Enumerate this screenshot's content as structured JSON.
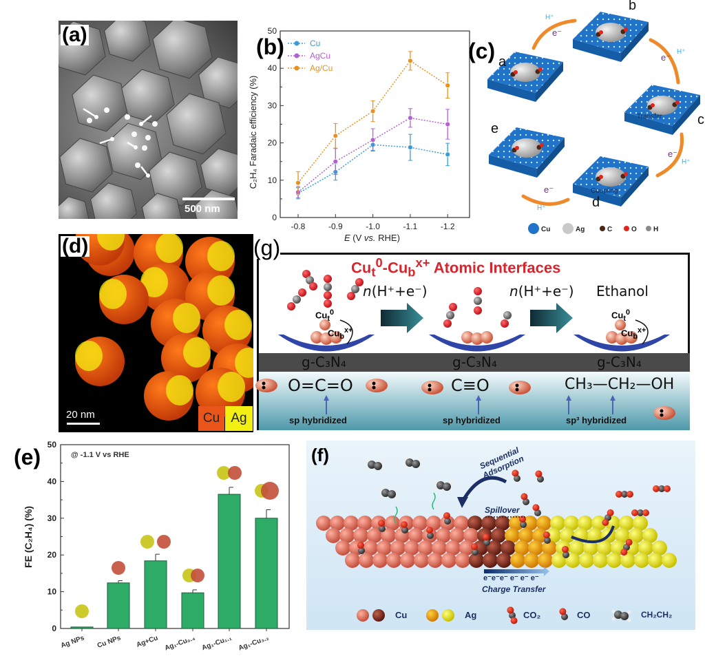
{
  "panels": {
    "a": {
      "label": "(a)",
      "scale_bar": "500 nm"
    },
    "b": {
      "label": "(b)"
    },
    "c": {
      "label": "(c)",
      "state_labels": [
        "a",
        "b",
        "c",
        "d",
        "e"
      ],
      "step_annotations": {
        "transfer": "Transfer",
        "coupling": "Coupling"
      },
      "proton": "H⁺",
      "electron": "e⁻",
      "legend": [
        {
          "label": "Cu",
          "color": "#1f74c9"
        },
        {
          "label": "Ag",
          "color": "#c9c9c9"
        },
        {
          "label": "C",
          "color": "#4a2616"
        },
        {
          "label": "O",
          "color": "#e1251b"
        },
        {
          "label": "H",
          "color": "#8a8a8a"
        }
      ]
    },
    "d": {
      "label": "(d)",
      "scale_bar": "20 nm",
      "legend": [
        {
          "label": "Cu",
          "color": "#e8541a"
        },
        {
          "label": "Ag",
          "color": "#f3ef12"
        }
      ]
    },
    "g": {
      "label": "(g)",
      "title": {
        "cu1": "Cu",
        "t": "t",
        "zero": "0",
        "cu2": "-Cu",
        "b": "b",
        "xplus": "x+",
        "rest": " Atomic Interfaces"
      },
      "step_n": "n",
      "step_rest": "(H⁺+e⁻)",
      "product": "Ethanol",
      "site_top": {
        "cu": "Cu",
        "sub": "t",
        "sup": "0"
      },
      "site_bottom": {
        "cu": "Cu",
        "sub": "b",
        "sup": "x+"
      },
      "substrate": "g-C₃N₄",
      "formulas": [
        "O=C=O",
        "C≡O",
        "CH₃—CH₂—OH"
      ],
      "hybridization": [
        "sp hybridized",
        "sp hybridized",
        "sp³ hybridized"
      ]
    },
    "e": {
      "label": "(e)"
    },
    "f": {
      "label": "(f)",
      "sequential_adsorption": "Sequential Adsorption",
      "spillover": "Spillover",
      "electrons": "e⁻e⁻e⁻ e⁻ e⁻ e⁻",
      "charge_transfer": "Charge Transfer",
      "legend": [
        {
          "label": "Cu"
        },
        {
          "label": "Ag"
        },
        {
          "label": "CO₂"
        },
        {
          "label": "CO"
        },
        {
          "label": "CH₂CH₂"
        }
      ]
    }
  },
  "chart_data": [
    {
      "id": "b",
      "type": "line",
      "title": "",
      "xlabel_italic": "E",
      "xlabel_rest": " (V ",
      "xlabel_vs": "vs.",
      "xlabel_end": " RHE)",
      "ylabel": "C₂H₄ Faradaic efficiency (%)",
      "categories": [
        "-0.8",
        "-0.9",
        "-1.0",
        "-1.1",
        "-1.2"
      ],
      "ylim": [
        0,
        50
      ],
      "yticks": [
        "0",
        "10",
        "20",
        "30",
        "40",
        "50"
      ],
      "legend_position": "top-left",
      "series": [
        {
          "name": "Cu",
          "color": "#3b9bd8",
          "values": [
            6.5,
            12.2,
            19.5,
            18.8,
            16.9
          ],
          "errors": [
            1.5,
            2.2,
            1.5,
            3.5,
            3.0
          ]
        },
        {
          "name": "AgCu",
          "color": "#b061d2",
          "values": [
            6.8,
            15.0,
            20.8,
            26.7,
            25.0
          ],
          "errors": [
            1.5,
            3.5,
            3.0,
            2.5,
            4.0
          ]
        },
        {
          "name": "Ag/Cu",
          "color": "#e8911e",
          "values": [
            9.3,
            21.9,
            28.5,
            42.0,
            35.4
          ],
          "errors": [
            3.0,
            3.3,
            2.8,
            2.5,
            3.4
          ]
        }
      ]
    },
    {
      "id": "e",
      "type": "bar",
      "annotation": "@ -1.1 V vs RHE",
      "ylabel": "FE (C₂H₄)  (%)",
      "categories": [
        "Ag NPs",
        "Cu NPs",
        "Ag+Cu",
        "Ag₁-Cu₀.₄",
        "Ag₁-Cu₁.₁",
        "Ag₁-Cu₃.₂"
      ],
      "values": [
        0.4,
        12.4,
        18.4,
        9.7,
        36.5,
        30.0
      ],
      "errors": [
        0,
        0.6,
        1.8,
        0.8,
        1.9,
        2.3
      ],
      "ylim": [
        0,
        50
      ],
      "yticks": [
        "0",
        "10",
        "20",
        "30",
        "40",
        "50"
      ],
      "bar_color": "#2fab68"
    }
  ]
}
